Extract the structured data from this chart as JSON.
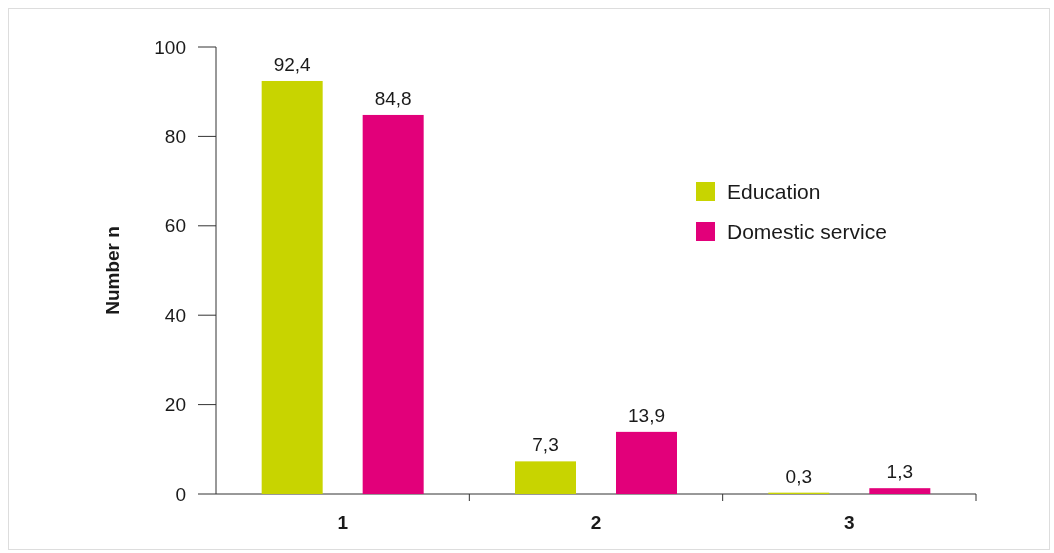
{
  "chart_data": {
    "type": "bar",
    "ylabel": "Number n",
    "categories": [
      "1",
      "2",
      "3"
    ],
    "series": [
      {
        "name": "Education",
        "color": "#c8d400",
        "values": [
          92.4,
          7.3,
          0.3
        ],
        "value_labels": [
          "92,4",
          "7,3",
          "0,3"
        ]
      },
      {
        "name": "Domestic service",
        "color": "#e2007a",
        "values": [
          84.8,
          13.9,
          1.3
        ],
        "value_labels": [
          "84,8",
          "13,9",
          "1,3"
        ]
      }
    ],
    "ylim": [
      0,
      100
    ],
    "yticks": [
      0,
      20,
      40,
      60,
      80,
      100
    ],
    "legend": "right",
    "grid": false
  }
}
